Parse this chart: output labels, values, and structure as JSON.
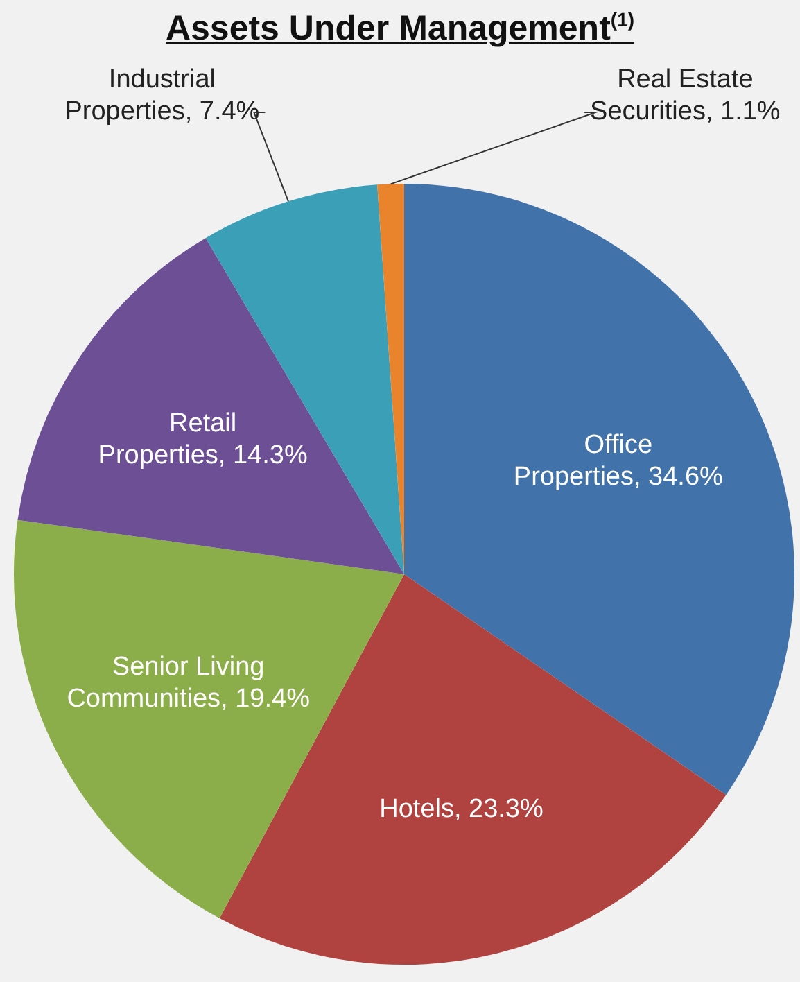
{
  "chart_data": {
    "type": "pie",
    "title": "Assets Under Management$^{(1)}$",
    "categories": [
      "Office Properties",
      "Hotels",
      "Senior Living Communities",
      "Retail Properties",
      "Industrial Properties",
      "Real Estate Securities"
    ],
    "value_labels": [
      "34.6%",
      "23.3%",
      "19.4%",
      "14.3%",
      "7.4%",
      "1.1%"
    ],
    "values": [
      34.6,
      23.3,
      19.4,
      14.3,
      7.4,
      1.1
    ],
    "colors": [
      "#4272aa",
      "#b0433f",
      "#8cae4a",
      "#6c4f95",
      "#3b9fb7",
      "#e9842d"
    ],
    "data_labels": true,
    "legend": false
  }
}
